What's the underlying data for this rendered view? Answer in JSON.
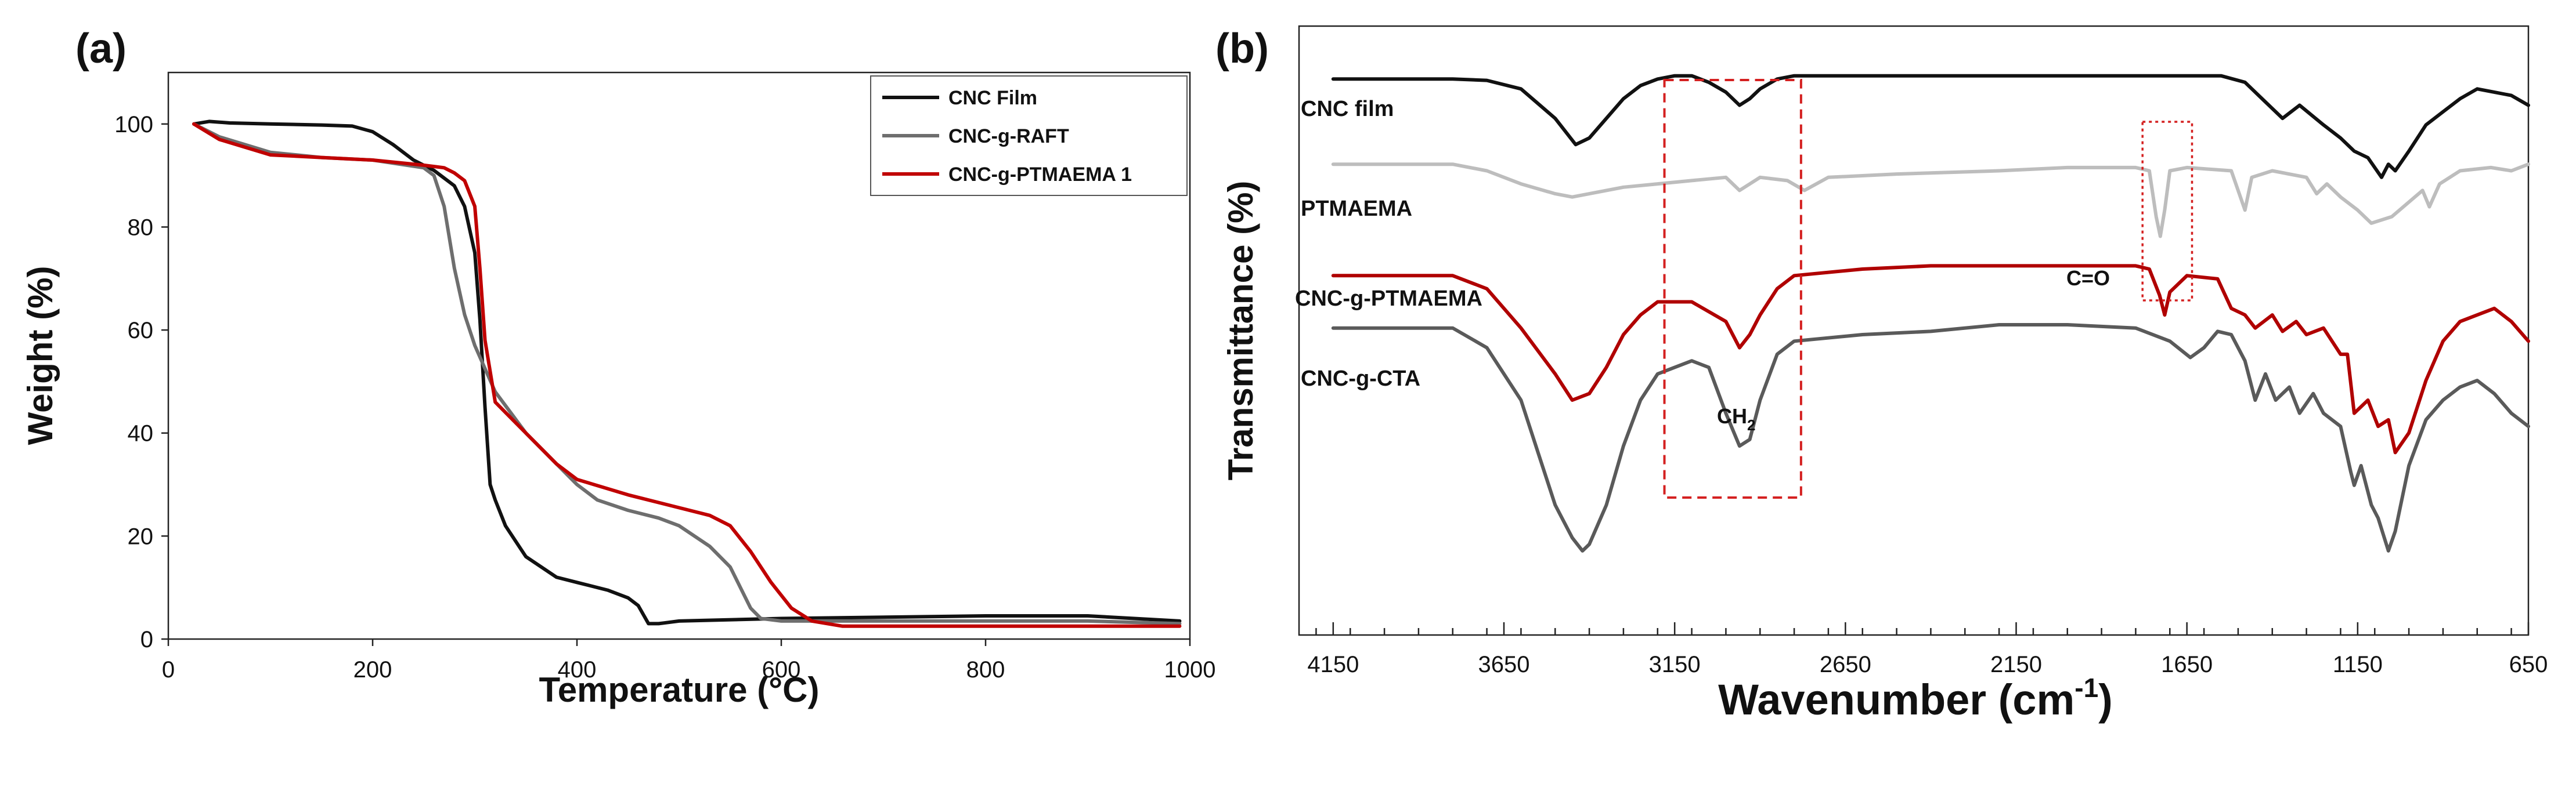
{
  "chart_data": [
    {
      "panel": "(a)",
      "type": "line",
      "title": "",
      "xlabel": "Temperature (°C)",
      "ylabel": "Weight (%)",
      "xlim": [
        0,
        1000
      ],
      "ylim": [
        0,
        110
      ],
      "xticks": [
        0,
        200,
        400,
        600,
        800,
        1000
      ],
      "yticks": [
        0,
        20,
        40,
        60,
        80,
        100
      ],
      "legend": {
        "position": "top-right",
        "entries": [
          "CNC Film",
          "CNC-g-RAFT",
          "CNC-g-PTMAEMA 1"
        ]
      },
      "series": [
        {
          "name": "CNC Film",
          "color": "#111111",
          "x": [
            25,
            40,
            60,
            100,
            150,
            180,
            200,
            220,
            240,
            260,
            280,
            290,
            300,
            305,
            310,
            315,
            320,
            330,
            350,
            380,
            400,
            430,
            450,
            460,
            470,
            480,
            500,
            600,
            800,
            900,
            990
          ],
          "y": [
            100,
            100.5,
            100.2,
            100,
            99.8,
            99.6,
            98.5,
            96,
            93,
            91,
            88,
            84,
            75,
            62,
            45,
            30,
            27,
            22,
            16,
            12,
            11,
            9.5,
            8,
            6.5,
            3,
            3,
            3.5,
            4,
            4.5,
            4.5,
            3.5
          ]
        },
        {
          "name": "CNC-g-RAFT",
          "color": "#6e6e6e",
          "x": [
            25,
            50,
            100,
            150,
            200,
            250,
            260,
            270,
            280,
            290,
            300,
            320,
            350,
            380,
            400,
            420,
            450,
            480,
            500,
            530,
            550,
            560,
            570,
            580,
            600,
            700,
            800,
            900,
            990
          ],
          "y": [
            100,
            97.5,
            94.5,
            93.5,
            93,
            91.5,
            90,
            84,
            72,
            63,
            57,
            48,
            40,
            34,
            30,
            27,
            25,
            23.5,
            22,
            18,
            14,
            10,
            6,
            4,
            3.5,
            3.5,
            3.5,
            3.5,
            3
          ]
        },
        {
          "name": "CNC-g-PTMAEMA 1",
          "color": "#c00000",
          "x": [
            25,
            50,
            100,
            150,
            200,
            250,
            270,
            280,
            290,
            300,
            305,
            310,
            320,
            340,
            360,
            380,
            400,
            450,
            500,
            530,
            550,
            570,
            590,
            610,
            630,
            660,
            700,
            800,
            900,
            990
          ],
          "y": [
            100,
            97,
            94,
            93.5,
            93,
            92,
            91.5,
            90.5,
            89,
            84,
            72,
            58,
            46,
            42,
            38,
            34,
            31,
            28,
            25.5,
            24,
            22,
            17,
            11,
            6,
            3.5,
            2.5,
            2.5,
            2.5,
            2.5,
            2.5
          ]
        }
      ]
    },
    {
      "panel": "(b)",
      "type": "line",
      "title": "",
      "xlabel": "Wavenumber (cm",
      "xlabel_superscript": "-1",
      "xlabel_suffix": ")",
      "ylabel": "Transmittance  (%)",
      "xlim": [
        4250,
        650
      ],
      "xaxis_reversed": true,
      "xticks": [
        4150,
        3650,
        3150,
        2650,
        2150,
        1650,
        1150,
        650
      ],
      "yticks": [],
      "annotations": [
        {
          "text": "CH2_box",
          "region": [
            3180,
            2780
          ]
        },
        {
          "text": "C=O_box",
          "region": [
            1780,
            1635
          ]
        }
      ],
      "annotation_labels": {
        "ch2_main": "CH",
        "ch2_sub": "2",
        "co": "C=O"
      },
      "series_labels": [
        "CNC film",
        "PTMAEMA",
        "CNC-g-PTMAEMA",
        "CNC-g-CTA"
      ],
      "series": [
        {
          "name": "CNC film",
          "color": "#111111",
          "baseline": 0.1,
          "x": [
            4150,
            3800,
            3700,
            3600,
            3500,
            3440,
            3400,
            3350,
            3300,
            3250,
            3200,
            3150,
            3100,
            3050,
            3000,
            2960,
            2930,
            2900,
            2850,
            2800,
            2600,
            2400,
            2200,
            2000,
            1800,
            1700,
            1650,
            1620,
            1550,
            1480,
            1430,
            1370,
            1320,
            1250,
            1200,
            1160,
            1120,
            1080,
            1060,
            1040,
            1000,
            950,
            900,
            850,
            800,
            750,
            700,
            650
          ],
          "y": [
            0.1,
            0.1,
            0.12,
            0.25,
            0.7,
            1.1,
            1.0,
            0.7,
            0.4,
            0.2,
            0.1,
            0.05,
            0.05,
            0.15,
            0.3,
            0.5,
            0.4,
            0.25,
            0.1,
            0.05,
            0.05,
            0.05,
            0.05,
            0.05,
            0.05,
            0.05,
            0.05,
            0.05,
            0.05,
            0.15,
            0.4,
            0.7,
            0.5,
            0.8,
            1.0,
            1.2,
            1.3,
            1.6,
            1.4,
            1.5,
            1.2,
            0.8,
            0.6,
            0.4,
            0.25,
            0.3,
            0.35,
            0.5
          ]
        },
        {
          "name": "PTMAEMA",
          "color": "#bdbdbd",
          "baseline": 1.4,
          "x": [
            4150,
            3800,
            3700,
            3600,
            3500,
            3450,
            3400,
            3300,
            3200,
            3100,
            3000,
            2960,
            2930,
            2900,
            2820,
            2770,
            2700,
            2500,
            2200,
            2000,
            1800,
            1760,
            1740,
            1728,
            1715,
            1700,
            1650,
            1520,
            1480,
            1460,
            1400,
            1300,
            1270,
            1240,
            1200,
            1150,
            1110,
            1050,
            960,
            940,
            910,
            850,
            760,
            700,
            650
          ],
          "y": [
            1.4,
            1.4,
            1.5,
            1.7,
            1.85,
            1.9,
            1.85,
            1.75,
            1.7,
            1.65,
            1.6,
            1.8,
            1.7,
            1.6,
            1.65,
            1.8,
            1.6,
            1.55,
            1.5,
            1.45,
            1.45,
            1.5,
            2.2,
            2.5,
            2.1,
            1.5,
            1.45,
            1.5,
            2.1,
            1.6,
            1.5,
            1.6,
            1.85,
            1.7,
            1.9,
            2.1,
            2.3,
            2.2,
            1.8,
            2.05,
            1.7,
            1.5,
            1.45,
            1.5,
            1.4
          ]
        },
        {
          "name": "CNC-g-PTMAEMA",
          "color": "#b00000",
          "baseline": 3.1,
          "x": [
            4150,
            3800,
            3700,
            3600,
            3500,
            3450,
            3400,
            3350,
            3300,
            3250,
            3200,
            3100,
            3000,
            2960,
            2930,
            2900,
            2850,
            2800,
            2600,
            2400,
            2200,
            2000,
            1800,
            1760,
            1730,
            1715,
            1700,
            1650,
            1560,
            1520,
            1480,
            1450,
            1400,
            1370,
            1330,
            1300,
            1250,
            1200,
            1180,
            1160,
            1120,
            1090,
            1060,
            1040,
            1000,
            950,
            900,
            850,
            800,
            750,
            700,
            650
          ],
          "y": [
            3.1,
            3.1,
            3.3,
            3.9,
            4.6,
            5.0,
            4.9,
            4.5,
            4.0,
            3.7,
            3.5,
            3.5,
            3.8,
            4.2,
            4.0,
            3.7,
            3.3,
            3.1,
            3.0,
            2.95,
            2.95,
            2.95,
            2.95,
            3.0,
            3.4,
            3.7,
            3.35,
            3.1,
            3.15,
            3.6,
            3.7,
            3.9,
            3.7,
            3.95,
            3.8,
            4.0,
            3.9,
            4.3,
            4.3,
            5.2,
            5.0,
            5.4,
            5.3,
            5.8,
            5.5,
            4.7,
            4.1,
            3.8,
            3.7,
            3.6,
            3.8,
            4.1
          ]
        },
        {
          "name": "CNC-g-CTA",
          "color": "#5a5a5a",
          "baseline": 3.9,
          "x": [
            4150,
            3800,
            3700,
            3600,
            3550,
            3500,
            3450,
            3420,
            3400,
            3350,
            3300,
            3250,
            3200,
            3100,
            3050,
            3000,
            2960,
            2930,
            2900,
            2850,
            2800,
            2600,
            2400,
            2200,
            2000,
            1800,
            1700,
            1640,
            1600,
            1560,
            1520,
            1480,
            1450,
            1420,
            1390,
            1350,
            1320,
            1280,
            1250,
            1200,
            1170,
            1160,
            1140,
            1110,
            1090,
            1060,
            1040,
            1000,
            950,
            900,
            850,
            800,
            750,
            700,
            650
          ],
          "y": [
            3.9,
            3.9,
            4.2,
            5.0,
            5.8,
            6.6,
            7.1,
            7.3,
            7.2,
            6.6,
            5.7,
            5.0,
            4.6,
            4.4,
            4.5,
            5.2,
            5.7,
            5.6,
            5.0,
            4.3,
            4.1,
            4.0,
            3.95,
            3.85,
            3.85,
            3.9,
            4.1,
            4.35,
            4.2,
            3.95,
            4.0,
            4.4,
            5.0,
            4.6,
            5.0,
            4.8,
            5.2,
            4.9,
            5.2,
            5.4,
            6.1,
            6.3,
            6.0,
            6.6,
            6.8,
            7.3,
            7.0,
            6.0,
            5.3,
            5.0,
            4.8,
            4.7,
            4.9,
            5.2,
            5.4
          ]
        }
      ]
    }
  ]
}
